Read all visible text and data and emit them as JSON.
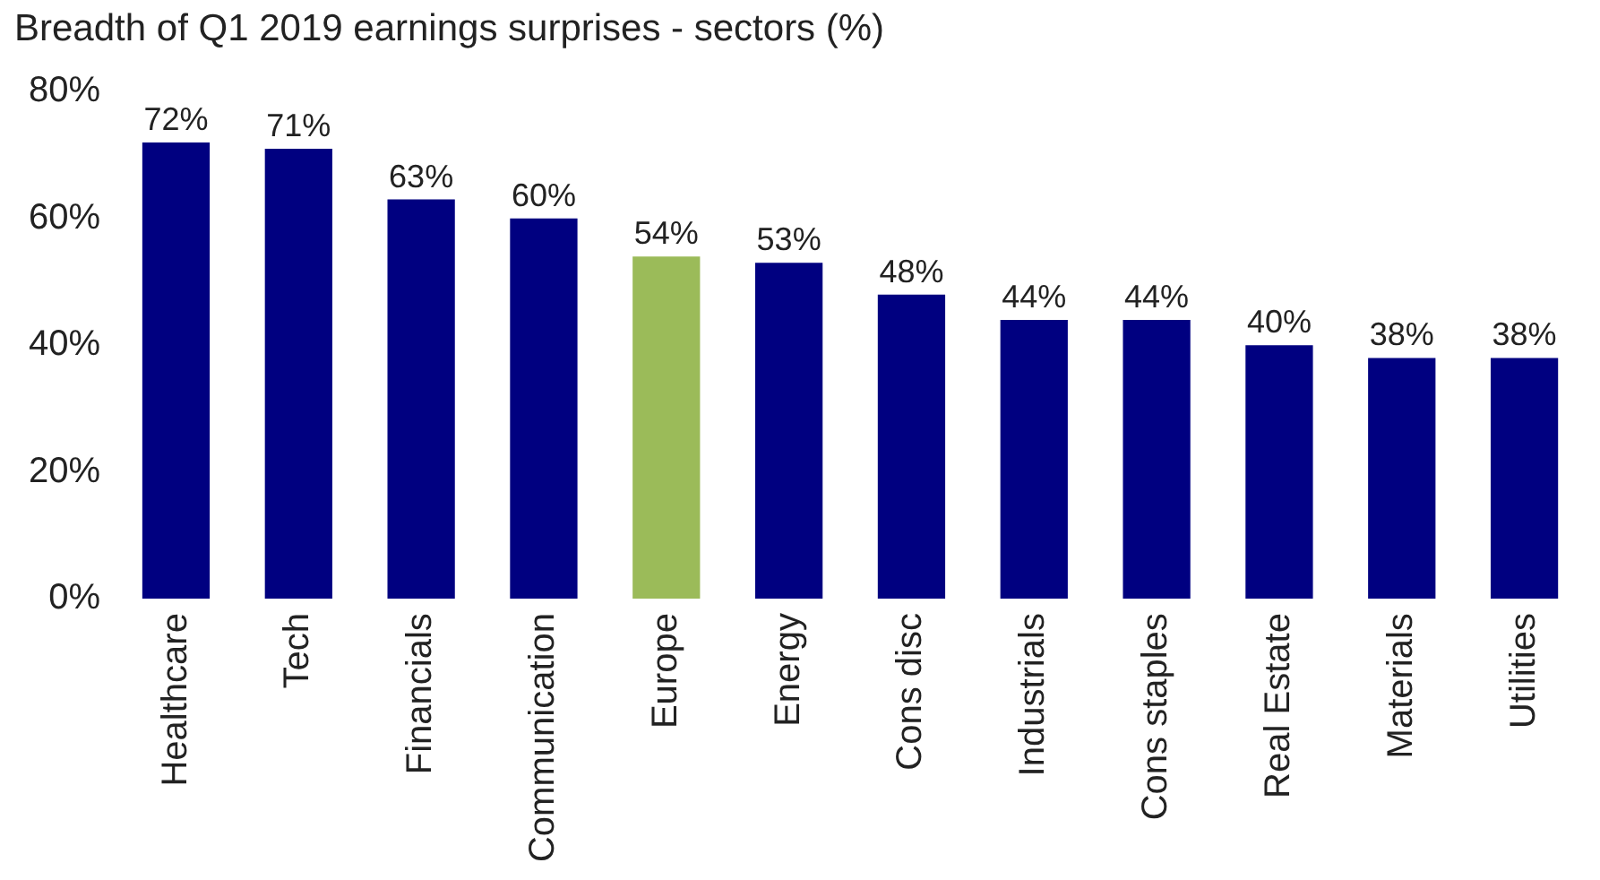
{
  "chart_data": {
    "type": "bar",
    "title": "Breadth of Q1 2019 earnings surprises - sectors (%)",
    "categories": [
      "Healthcare",
      "Tech",
      "Financials",
      "Communication",
      "Europe",
      "Energy",
      "Cons disc",
      "Industrials",
      "Cons staples",
      "Real Estate",
      "Materials",
      "Utilities"
    ],
    "values": [
      72,
      71,
      63,
      60,
      54,
      53,
      48,
      44,
      44,
      40,
      38,
      38
    ],
    "colors": [
      "#000080",
      "#000080",
      "#000080",
      "#000080",
      "#9bbb59",
      "#000080",
      "#000080",
      "#000080",
      "#000080",
      "#000080",
      "#000080",
      "#000080"
    ],
    "value_labels": [
      "72%",
      "71%",
      "63%",
      "60%",
      "54%",
      "53%",
      "48%",
      "44%",
      "44%",
      "40%",
      "38%",
      "38%"
    ],
    "ylim": [
      0,
      80
    ],
    "yticks": [
      {
        "value": 0,
        "label": "0%"
      },
      {
        "value": 20,
        "label": "20%"
      },
      {
        "value": 40,
        "label": "40%"
      },
      {
        "value": 60,
        "label": "60%"
      },
      {
        "value": 80,
        "label": "80%"
      }
    ],
    "grid": false,
    "legend": false
  }
}
